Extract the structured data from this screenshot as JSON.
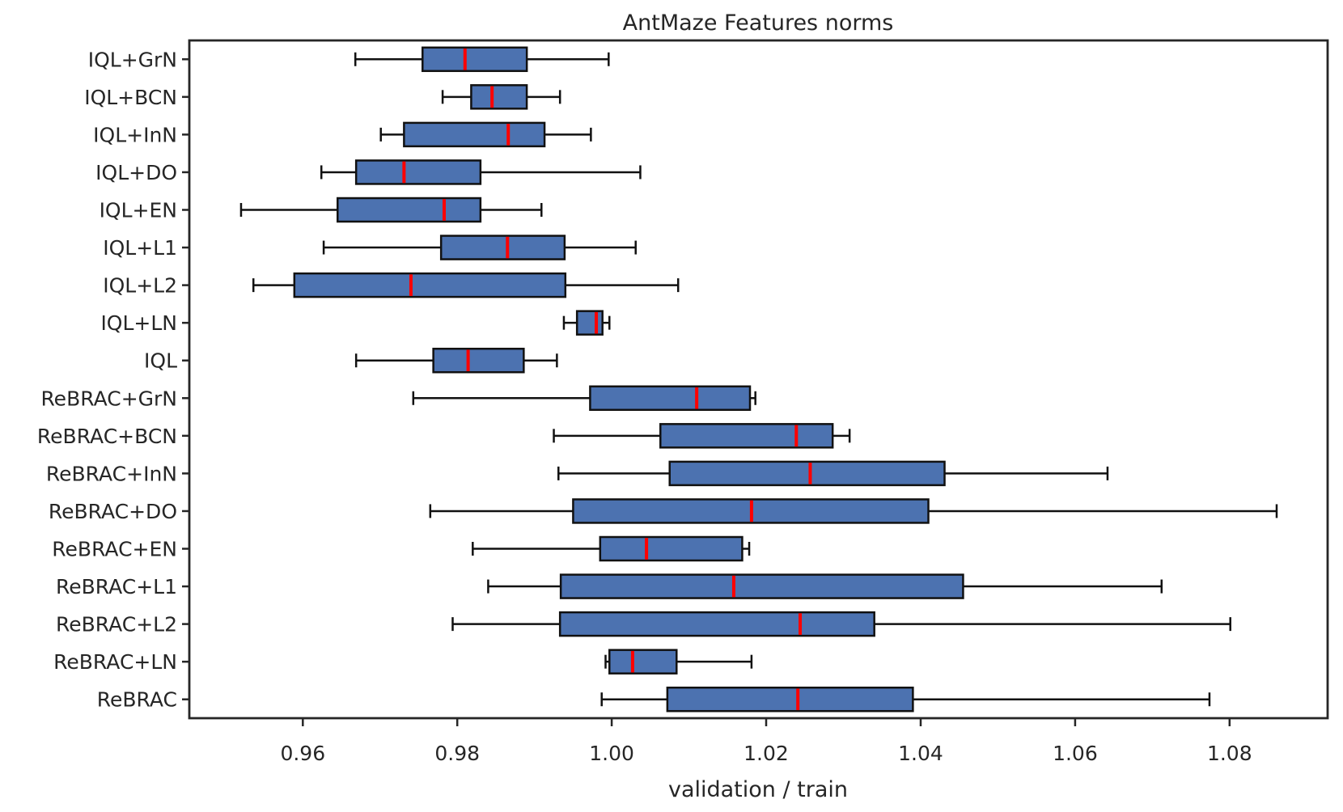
{
  "chart_data": {
    "type": "boxplot",
    "orientation": "horizontal",
    "title": "AntMaze Features norms",
    "xlabel": "validation / train",
    "x_tick_labels": [
      "0.96",
      "0.98",
      "1.00",
      "1.02",
      "1.04",
      "1.06",
      "1.08"
    ],
    "x_tick_values": [
      0.96,
      0.98,
      1.0,
      1.02,
      1.04,
      1.06,
      1.08
    ],
    "xlim": [
      0.9453,
      1.0927
    ],
    "grid": false,
    "legend": false,
    "categories": [
      "IQL+GrN",
      "IQL+BCN",
      "IQL+InN",
      "IQL+DO",
      "IQL+EN",
      "IQL+L1",
      "IQL+L2",
      "IQL+LN",
      "IQL",
      "ReBRAC+GrN",
      "ReBRAC+BCN",
      "ReBRAC+InN",
      "ReBRAC+DO",
      "ReBRAC+EN",
      "ReBRAC+L1",
      "ReBRAC+L2",
      "ReBRAC+LN",
      "ReBRAC"
    ],
    "boxes": [
      {
        "label": "IQL+GrN",
        "whislo": 0.9668,
        "q1": 0.9755,
        "med": 0.981,
        "q3": 0.989,
        "whishi": 0.9996
      },
      {
        "label": "IQL+BCN",
        "whislo": 0.9781,
        "q1": 0.9818,
        "med": 0.9845,
        "q3": 0.989,
        "whishi": 0.9933
      },
      {
        "label": "IQL+InN",
        "whislo": 0.9701,
        "q1": 0.9731,
        "med": 0.9866,
        "q3": 0.9913,
        "whishi": 0.9973
      },
      {
        "label": "IQL+DO",
        "whislo": 0.9624,
        "q1": 0.9669,
        "med": 0.9731,
        "q3": 0.983,
        "whishi": 1.0037
      },
      {
        "label": "IQL+EN",
        "whislo": 0.952,
        "q1": 0.9645,
        "med": 0.9783,
        "q3": 0.983,
        "whishi": 0.9909
      },
      {
        "label": "IQL+L1",
        "whislo": 0.9627,
        "q1": 0.9779,
        "med": 0.9865,
        "q3": 0.9939,
        "whishi": 1.0031
      },
      {
        "label": "IQL+L2",
        "whislo": 0.9536,
        "q1": 0.9589,
        "med": 0.974,
        "q3": 0.994,
        "whishi": 1.0086
      },
      {
        "label": "IQL+LN",
        "whislo": 0.9938,
        "q1": 0.9955,
        "med": 0.998,
        "q3": 0.9988,
        "whishi": 0.9997
      },
      {
        "label": "IQL",
        "whislo": 0.9669,
        "q1": 0.9769,
        "med": 0.9814,
        "q3": 0.9886,
        "whishi": 0.9929
      },
      {
        "label": "ReBRAC+GrN",
        "whislo": 0.9743,
        "q1": 0.9972,
        "med": 1.011,
        "q3": 1.0179,
        "whishi": 1.0186
      },
      {
        "label": "ReBRAC+BCN",
        "whislo": 0.9925,
        "q1": 1.0063,
        "med": 1.0239,
        "q3": 1.0286,
        "whishi": 1.0308
      },
      {
        "label": "ReBRAC+InN",
        "whislo": 0.9931,
        "q1": 1.0075,
        "med": 1.0257,
        "q3": 1.0431,
        "whishi": 1.0642
      },
      {
        "label": "ReBRAC+DO",
        "whislo": 0.9765,
        "q1": 0.995,
        "med": 1.0181,
        "q3": 1.041,
        "whishi": 1.0861
      },
      {
        "label": "ReBRAC+EN",
        "whislo": 0.982,
        "q1": 0.9985,
        "med": 1.0045,
        "q3": 1.0169,
        "whishi": 1.0178
      },
      {
        "label": "ReBRAC+L1",
        "whislo": 0.984,
        "q1": 0.9934,
        "med": 1.0158,
        "q3": 1.0455,
        "whishi": 1.0712
      },
      {
        "label": "ReBRAC+L2",
        "whislo": 0.9794,
        "q1": 0.9933,
        "med": 1.0244,
        "q3": 1.034,
        "whishi": 1.0801
      },
      {
        "label": "ReBRAC+LN",
        "whislo": 0.9992,
        "q1": 0.9997,
        "med": 1.0027,
        "q3": 1.0084,
        "whishi": 1.0181
      },
      {
        "label": "ReBRAC",
        "whislo": 0.9987,
        "q1": 1.0072,
        "med": 1.0241,
        "q3": 1.039,
        "whishi": 1.0774
      }
    ],
    "colors": {
      "box_fill": "#4C72B0",
      "box_edge": "#111111",
      "median": "#ff0000",
      "whisker": "#111111",
      "spine": "#262626",
      "text": "#262626",
      "background": "#ffffff"
    }
  }
}
